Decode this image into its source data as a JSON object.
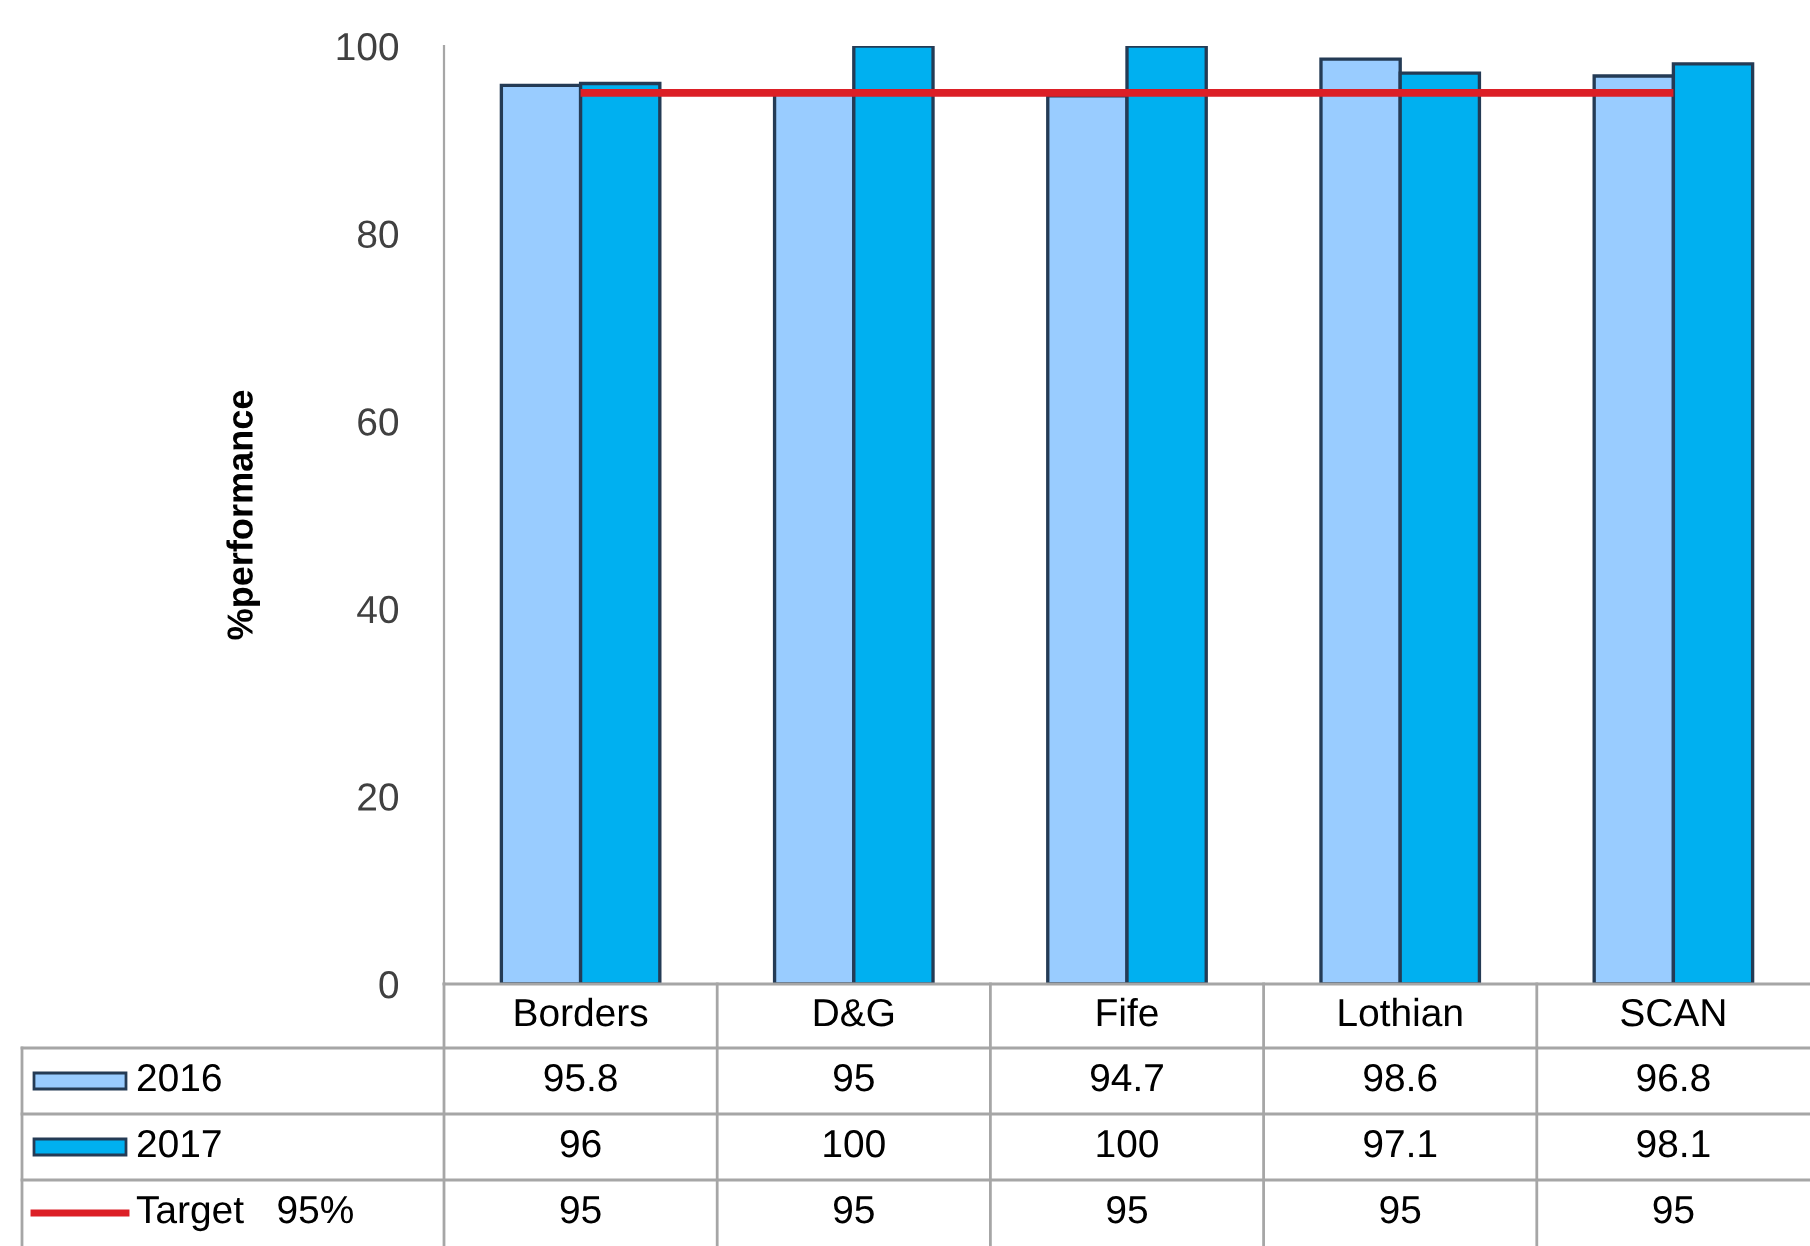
{
  "chart_data": {
    "type": "bar",
    "categories": [
      "Borders",
      "D&G",
      "Fife",
      "Lothian",
      "SCAN"
    ],
    "series": [
      {
        "name": "2016",
        "color": "#99ccff",
        "values": [
          95.8,
          95,
          94.7,
          98.6,
          96.8
        ]
      },
      {
        "name": "2017",
        "color": "#00b0f0",
        "values": [
          96,
          100,
          100,
          97.1,
          98.1
        ]
      },
      {
        "name": "Target   95%",
        "type": "line",
        "color": "#dc1f26",
        "values": [
          95,
          95,
          95,
          95,
          95
        ]
      }
    ],
    "ylabel": "%performance",
    "ylim": [
      0,
      100
    ],
    "yticks": [
      0,
      20,
      40,
      60,
      80,
      100
    ],
    "data_labels": true,
    "legend": "bottom left"
  }
}
